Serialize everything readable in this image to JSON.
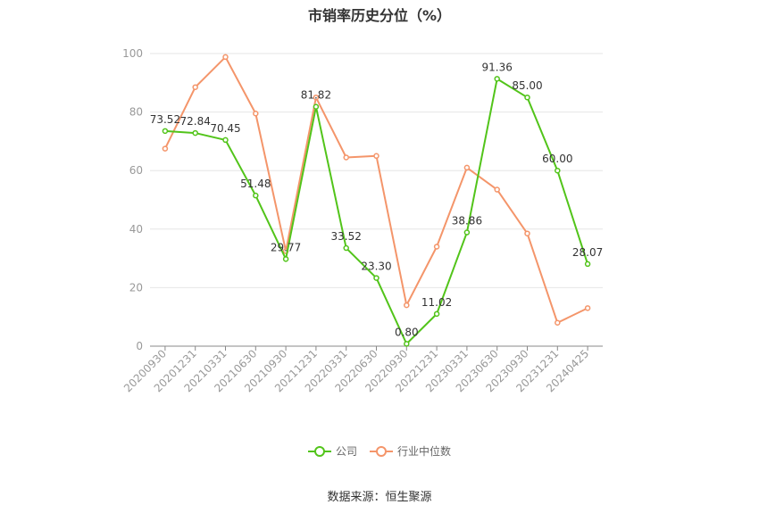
{
  "chart_data": {
    "type": "line",
    "title": "市销率历史分位（%）",
    "categories": [
      "20200930",
      "20201231",
      "20210331",
      "20210630",
      "20210930",
      "20211231",
      "20220331",
      "20220630",
      "20220930",
      "20221231",
      "20230331",
      "20230630",
      "20230930",
      "20231231",
      "20240425"
    ],
    "series": [
      {
        "name": "公司",
        "color": "#52c41a",
        "show_labels": true,
        "values": [
          73.52,
          72.84,
          70.45,
          51.48,
          29.77,
          81.82,
          33.52,
          23.3,
          0.8,
          11.02,
          38.86,
          91.36,
          85.0,
          60.0,
          28.07
        ]
      },
      {
        "name": "行业中位数",
        "color": "#f4956a",
        "show_labels": false,
        "values": [
          67.5,
          88.5,
          98.8,
          79.5,
          32.5,
          85.0,
          64.5,
          65.0,
          14.0,
          34.0,
          61.0,
          53.5,
          38.5,
          8.0,
          13.0
        ]
      }
    ],
    "ylim": [
      0,
      100
    ],
    "yticks": [
      "0",
      "20",
      "40",
      "60",
      "80",
      "100"
    ],
    "grid": true,
    "legend_position": "bottom-center",
    "source": "数据来源：恒生聚源"
  }
}
